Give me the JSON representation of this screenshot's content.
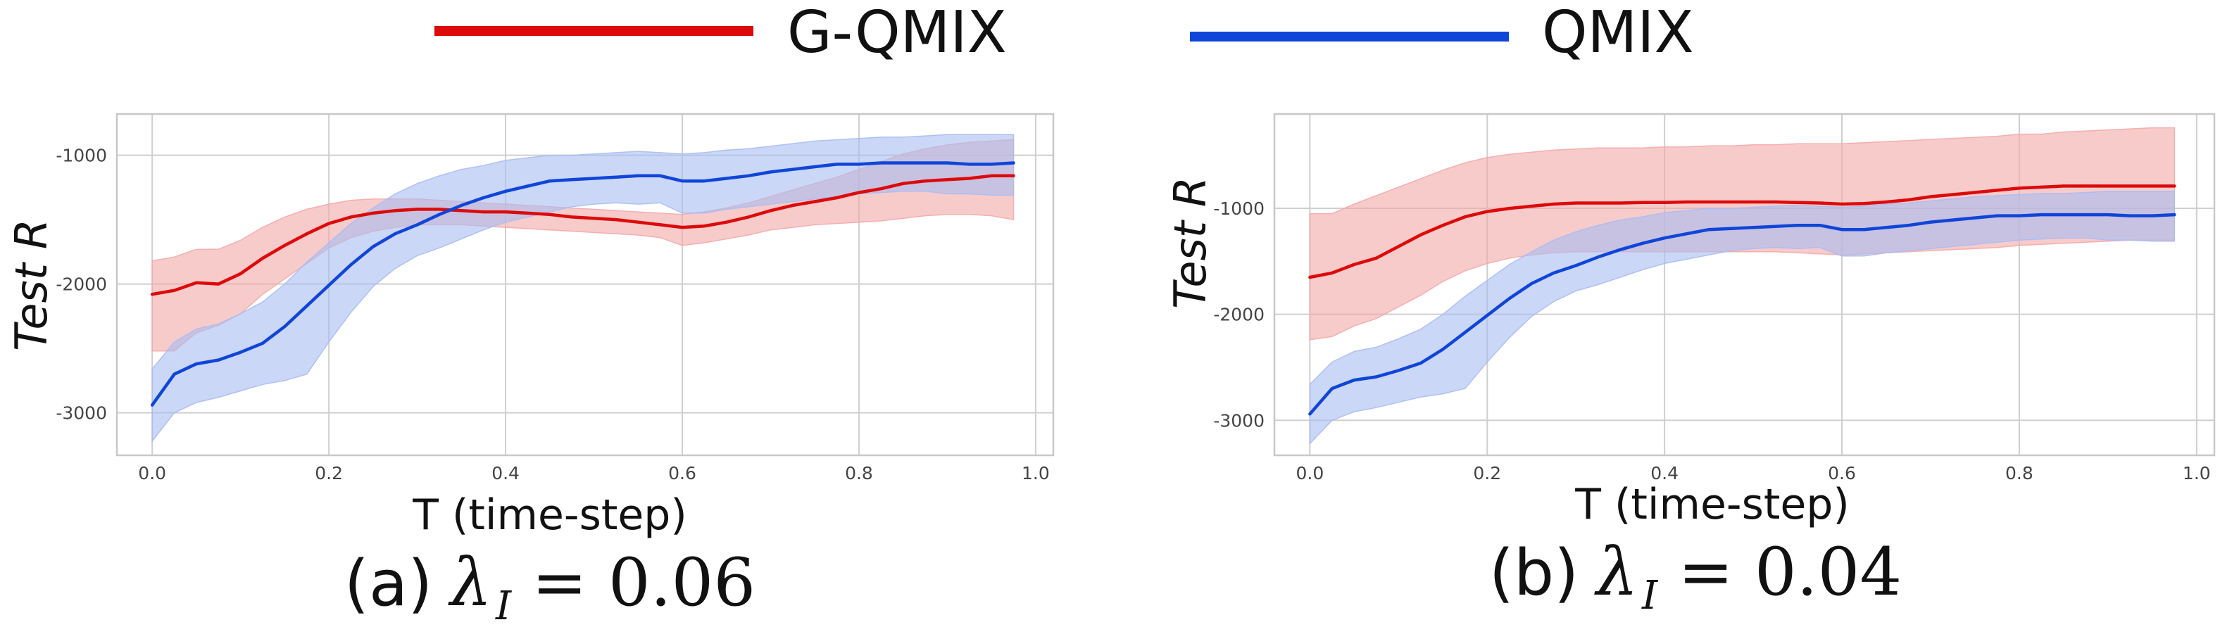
{
  "legend": {
    "entries": [
      {
        "label": "G-QMIX",
        "color": "#dd0a0a"
      },
      {
        "label": "QMIX",
        "color": "#0f45d8"
      }
    ]
  },
  "colors": {
    "gqmix_line": "#dd0a0a",
    "gqmix_band": "#f4a8a8",
    "qmix_line": "#0f45d8",
    "qmix_band": "#a8bcf2"
  },
  "chart_data": [
    {
      "type": "line",
      "caption_prefix": "(a)",
      "lambda_symbol": "λ",
      "lambda_subscript": "I",
      "caption_value": "= 0.06",
      "xlabel": "T (time-step)",
      "ylabel": "Test R",
      "xlim": [
        -0.04,
        1.02
      ],
      "ylim": [
        -3330,
        -680
      ],
      "xticks": [
        0.0,
        0.2,
        0.4,
        0.6,
        0.8,
        1.0
      ],
      "xtick_labels": [
        "0.0",
        "0.2",
        "0.4",
        "0.6",
        "0.8",
        "1.0"
      ],
      "yticks": [
        -3000,
        -2000,
        -1000
      ],
      "ytick_labels": [
        "-3000",
        "-2000",
        "-1000"
      ],
      "grid": true,
      "x": [
        0.0,
        0.025,
        0.05,
        0.075,
        0.1,
        0.125,
        0.15,
        0.175,
        0.2,
        0.225,
        0.25,
        0.275,
        0.3,
        0.325,
        0.35,
        0.375,
        0.4,
        0.425,
        0.45,
        0.475,
        0.5,
        0.525,
        0.55,
        0.575,
        0.6,
        0.625,
        0.65,
        0.675,
        0.7,
        0.725,
        0.75,
        0.775,
        0.8,
        0.825,
        0.85,
        0.875,
        0.9,
        0.925,
        0.95,
        0.975
      ],
      "series": [
        {
          "name": "G-QMIX",
          "values": [
            -2080,
            -2050,
            -1990,
            -2000,
            -1920,
            -1800,
            -1700,
            -1610,
            -1530,
            -1480,
            -1450,
            -1430,
            -1420,
            -1420,
            -1430,
            -1440,
            -1440,
            -1450,
            -1460,
            -1480,
            -1490,
            -1500,
            -1520,
            -1540,
            -1560,
            -1550,
            -1520,
            -1480,
            -1430,
            -1390,
            -1360,
            -1330,
            -1290,
            -1260,
            -1220,
            -1200,
            -1190,
            -1180,
            -1160,
            -1160
          ],
          "upper": [
            -1820,
            -1790,
            -1730,
            -1730,
            -1660,
            -1560,
            -1480,
            -1420,
            -1380,
            -1350,
            -1340,
            -1340,
            -1340,
            -1350,
            -1360,
            -1370,
            -1380,
            -1390,
            -1400,
            -1410,
            -1420,
            -1430,
            -1440,
            -1450,
            -1460,
            -1440,
            -1410,
            -1370,
            -1320,
            -1270,
            -1220,
            -1170,
            -1110,
            -1050,
            -990,
            -950,
            -920,
            -900,
            -890,
            -880
          ],
          "lower": [
            -2520,
            -2520,
            -2380,
            -2320,
            -2230,
            -2080,
            -1960,
            -1840,
            -1720,
            -1640,
            -1590,
            -1560,
            -1540,
            -1540,
            -1540,
            -1550,
            -1560,
            -1570,
            -1580,
            -1590,
            -1600,
            -1610,
            -1620,
            -1640,
            -1700,
            -1680,
            -1650,
            -1620,
            -1580,
            -1560,
            -1540,
            -1530,
            -1520,
            -1510,
            -1490,
            -1470,
            -1460,
            -1460,
            -1470,
            -1500
          ]
        },
        {
          "name": "QMIX",
          "values": [
            -2940,
            -2700,
            -2620,
            -2590,
            -2530,
            -2460,
            -2330,
            -2170,
            -2010,
            -1850,
            -1710,
            -1610,
            -1540,
            -1460,
            -1390,
            -1330,
            -1280,
            -1240,
            -1200,
            -1190,
            -1180,
            -1170,
            -1160,
            -1160,
            -1200,
            -1200,
            -1180,
            -1160,
            -1130,
            -1110,
            -1090,
            -1070,
            -1070,
            -1060,
            -1060,
            -1060,
            -1060,
            -1070,
            -1070,
            -1060
          ],
          "upper": [
            -2660,
            -2450,
            -2350,
            -2310,
            -2230,
            -2140,
            -2000,
            -1830,
            -1680,
            -1530,
            -1410,
            -1300,
            -1220,
            -1160,
            -1110,
            -1080,
            -1040,
            -1020,
            -1000,
            -1000,
            -990,
            -980,
            -970,
            -980,
            -990,
            -980,
            -960,
            -950,
            -930,
            -910,
            -890,
            -880,
            -870,
            -860,
            -860,
            -850,
            -840,
            -840,
            -840,
            -840
          ],
          "lower": [
            -3220,
            -3000,
            -2920,
            -2880,
            -2830,
            -2780,
            -2750,
            -2700,
            -2450,
            -2220,
            -2020,
            -1880,
            -1780,
            -1720,
            -1650,
            -1580,
            -1520,
            -1480,
            -1440,
            -1400,
            -1380,
            -1370,
            -1380,
            -1370,
            -1450,
            -1450,
            -1420,
            -1400,
            -1380,
            -1360,
            -1340,
            -1320,
            -1300,
            -1290,
            -1280,
            -1280,
            -1300,
            -1300,
            -1310,
            -1310
          ]
        }
      ]
    },
    {
      "type": "line",
      "caption_prefix": "(b)",
      "lambda_symbol": "λ",
      "lambda_subscript": "I",
      "caption_value": "= 0.04",
      "xlabel": "T (time-step)",
      "ylabel": "Test R",
      "xlim": [
        -0.04,
        1.02
      ],
      "ylim": [
        -3330,
        -110
      ],
      "xticks": [
        0.0,
        0.2,
        0.4,
        0.6,
        0.8,
        1.0
      ],
      "xtick_labels": [
        "0.0",
        "0.2",
        "0.4",
        "0.6",
        "0.8",
        "1.0"
      ],
      "yticks": [
        -3000,
        -2000,
        -1000
      ],
      "ytick_labels": [
        "-3000",
        "-2000",
        "-1000"
      ],
      "grid": true,
      "x": [
        0.0,
        0.025,
        0.05,
        0.075,
        0.1,
        0.125,
        0.15,
        0.175,
        0.2,
        0.225,
        0.25,
        0.275,
        0.3,
        0.325,
        0.35,
        0.375,
        0.4,
        0.425,
        0.45,
        0.475,
        0.5,
        0.525,
        0.55,
        0.575,
        0.6,
        0.625,
        0.65,
        0.675,
        0.7,
        0.725,
        0.75,
        0.775,
        0.8,
        0.825,
        0.85,
        0.875,
        0.9,
        0.925,
        0.95,
        0.975
      ],
      "series": [
        {
          "name": "G-QMIX",
          "values": [
            -1650,
            -1610,
            -1530,
            -1470,
            -1360,
            -1250,
            -1160,
            -1080,
            -1030,
            -1000,
            -980,
            -960,
            -950,
            -950,
            -950,
            -945,
            -945,
            -940,
            -940,
            -940,
            -940,
            -940,
            -945,
            -950,
            -960,
            -955,
            -940,
            -920,
            -890,
            -870,
            -850,
            -830,
            -810,
            -800,
            -790,
            -790,
            -790,
            -790,
            -790,
            -790
          ],
          "upper": [
            -1050,
            -1050,
            -960,
            -880,
            -800,
            -720,
            -640,
            -570,
            -520,
            -490,
            -470,
            -450,
            -440,
            -430,
            -430,
            -430,
            -420,
            -420,
            -410,
            -410,
            -400,
            -400,
            -390,
            -390,
            -390,
            -380,
            -370,
            -360,
            -350,
            -340,
            -330,
            -320,
            -300,
            -300,
            -280,
            -270,
            -260,
            -250,
            -240,
            -240
          ],
          "lower": [
            -2240,
            -2210,
            -2110,
            -2040,
            -1930,
            -1820,
            -1690,
            -1590,
            -1520,
            -1470,
            -1440,
            -1420,
            -1410,
            -1410,
            -1410,
            -1410,
            -1410,
            -1410,
            -1410,
            -1410,
            -1410,
            -1410,
            -1420,
            -1430,
            -1440,
            -1430,
            -1420,
            -1410,
            -1400,
            -1390,
            -1380,
            -1370,
            -1350,
            -1340,
            -1330,
            -1320,
            -1310,
            -1300,
            -1300,
            -1300
          ]
        },
        {
          "name": "QMIX",
          "values": [
            -2940,
            -2700,
            -2620,
            -2590,
            -2530,
            -2460,
            -2330,
            -2170,
            -2010,
            -1850,
            -1710,
            -1610,
            -1540,
            -1460,
            -1390,
            -1330,
            -1280,
            -1240,
            -1200,
            -1190,
            -1180,
            -1170,
            -1160,
            -1160,
            -1200,
            -1200,
            -1180,
            -1160,
            -1130,
            -1110,
            -1090,
            -1070,
            -1070,
            -1060,
            -1060,
            -1060,
            -1060,
            -1070,
            -1070,
            -1060
          ],
          "upper": [
            -2660,
            -2450,
            -2350,
            -2310,
            -2230,
            -2140,
            -2000,
            -1830,
            -1680,
            -1530,
            -1410,
            -1300,
            -1220,
            -1160,
            -1110,
            -1080,
            -1040,
            -1020,
            -1000,
            -1000,
            -990,
            -980,
            -970,
            -980,
            -990,
            -980,
            -960,
            -950,
            -930,
            -910,
            -890,
            -880,
            -870,
            -860,
            -860,
            -850,
            -840,
            -840,
            -840,
            -840
          ],
          "lower": [
            -3220,
            -3000,
            -2920,
            -2880,
            -2830,
            -2780,
            -2750,
            -2700,
            -2450,
            -2220,
            -2020,
            -1880,
            -1780,
            -1720,
            -1650,
            -1580,
            -1520,
            -1480,
            -1440,
            -1400,
            -1380,
            -1370,
            -1380,
            -1370,
            -1450,
            -1450,
            -1420,
            -1400,
            -1380,
            -1360,
            -1340,
            -1320,
            -1300,
            -1290,
            -1280,
            -1280,
            -1300,
            -1300,
            -1310,
            -1310
          ]
        }
      ]
    }
  ]
}
